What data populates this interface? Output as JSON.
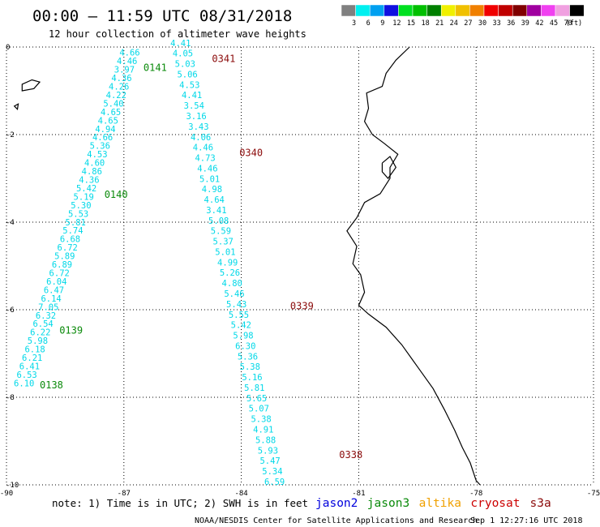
{
  "header": {
    "title": "00:00 – 11:59 UTC 08/31/2018",
    "subtitle": "12 hour collection of altimeter wave heights"
  },
  "legend": {
    "unit": "(ft)",
    "bins": [
      {
        "label": "3",
        "color": "#808080"
      },
      {
        "label": "6",
        "color": "#00f0f0"
      },
      {
        "label": "9",
        "color": "#00a0f0"
      },
      {
        "label": "12",
        "color": "#1010e0"
      },
      {
        "label": "15",
        "color": "#00e020"
      },
      {
        "label": "18",
        "color": "#00c000"
      },
      {
        "label": "21",
        "color": "#008000"
      },
      {
        "label": "24",
        "color": "#f0f000"
      },
      {
        "label": "27",
        "color": "#f0c000"
      },
      {
        "label": "30",
        "color": "#f08000"
      },
      {
        "label": "33",
        "color": "#f00000"
      },
      {
        "label": "36",
        "color": "#c00000"
      },
      {
        "label": "39",
        "color": "#800000"
      },
      {
        "label": "42",
        "color": "#a000a0"
      },
      {
        "label": "45",
        "color": "#f040f0"
      },
      {
        "label": "70",
        "color": "#f0a0e0"
      },
      {
        "label": "",
        "color": "#000000"
      }
    ]
  },
  "axes": {
    "lon_range": [
      -90,
      -75
    ],
    "lat_range": [
      -10,
      0
    ],
    "x_ticks": [
      {
        "value": -90,
        "label": "-90"
      },
      {
        "value": -87,
        "label": "-87"
      },
      {
        "value": -84,
        "label": "-84"
      },
      {
        "value": -81,
        "label": "-81"
      },
      {
        "value": -78,
        "label": "-78"
      },
      {
        "value": -75,
        "label": "-75"
      }
    ],
    "y_ticks": [
      {
        "value": 0,
        "label": "0"
      },
      {
        "value": -2,
        "label": "-2"
      },
      {
        "value": -4,
        "label": "-4"
      },
      {
        "value": -6,
        "label": "-6"
      },
      {
        "value": -8,
        "label": "-8"
      },
      {
        "value": -10,
        "label": "-10"
      }
    ],
    "grid": "dotted"
  },
  "tracks": [
    {
      "satellite": "jason3",
      "color": "#00d8e8",
      "start": [
        -86.85,
        -0.05
      ],
      "end": [
        -89.55,
        -7.6
      ],
      "values": [
        "4.66",
        "4.46",
        "3.97",
        "4.36",
        "4.26",
        "4.22",
        "5.40",
        "4.65",
        "4.65",
        "4.94",
        "4.66",
        "5.36",
        "4.53",
        "4.60",
        "4.86",
        "4.36",
        "5.42",
        "5.19",
        "5.30",
        "5.53",
        "5.81",
        "5.74",
        "6.68",
        "6.72",
        "5.89",
        "6.89",
        "6.72",
        "6.04",
        "6.47",
        "6.14",
        "7.05",
        "6.32",
        "6.54",
        "6.22",
        "5.98",
        "6.18",
        "6.21",
        "6.41",
        "6.53",
        "6.10"
      ]
    },
    {
      "satellite": "s3a",
      "color": "#00d8e8",
      "start": [
        -85.55,
        0.17
      ],
      "end": [
        -83.15,
        -9.85
      ],
      "values": [
        "4.41",
        "4.05",
        "5.03",
        "5.06",
        "4.53",
        "4.41",
        "3.54",
        "3.16",
        "3.43",
        "4.06",
        "4.46",
        "4.73",
        "4.46",
        "5.01",
        "4.98",
        "4.64",
        "3.41",
        "5.08",
        "5.59",
        "5.37",
        "5.01",
        "4.99",
        "5.26",
        "4.80",
        "5.46",
        "5.43",
        "5.55",
        "5.42",
        "5.98",
        "6.30",
        "5.36",
        "5.38",
        "5.16",
        "5.81",
        "5.65",
        "5.07",
        "5.38",
        "4.91",
        "5.88",
        "5.93",
        "5.47",
        "5.34",
        "6.59"
      ]
    }
  ],
  "pass_labels": [
    {
      "text": "0141",
      "lon": -86.5,
      "lat": -0.45,
      "satellite": "jason3",
      "color": "#0a8a0a"
    },
    {
      "text": "0140",
      "lon": -87.5,
      "lat": -3.35,
      "satellite": "jason3",
      "color": "#0a8a0a"
    },
    {
      "text": "0139",
      "lon": -88.65,
      "lat": -6.45,
      "satellite": "jason3",
      "color": "#0a8a0a"
    },
    {
      "text": "0138",
      "lon": -89.15,
      "lat": -7.7,
      "satellite": "jason3",
      "color": "#0a8a0a"
    },
    {
      "text": "0341",
      "lon": -84.75,
      "lat": -0.25,
      "satellite": "s3a",
      "color": "#8b0a0a"
    },
    {
      "text": "0340",
      "lon": -84.05,
      "lat": -2.4,
      "satellite": "s3a",
      "color": "#8b0a0a"
    },
    {
      "text": "0339",
      "lon": -82.75,
      "lat": -5.9,
      "satellite": "s3a",
      "color": "#8b0a0a"
    },
    {
      "text": "0338",
      "lon": -81.5,
      "lat": -9.3,
      "satellite": "s3a",
      "color": "#8b0a0a"
    }
  ],
  "coastline": {
    "color": "#000000",
    "mainland": [
      [
        -79.7,
        0
      ],
      [
        -80.05,
        -0.3
      ],
      [
        -80.3,
        -0.6
      ],
      [
        -80.4,
        -0.9
      ],
      [
        -80.8,
        -1.05
      ],
      [
        -80.75,
        -1.4
      ],
      [
        -80.85,
        -1.7
      ],
      [
        -80.65,
        -2.0
      ],
      [
        -80.35,
        -2.2
      ],
      [
        -80.0,
        -2.45
      ],
      [
        -80.2,
        -2.75
      ],
      [
        -80.2,
        -3.0
      ],
      [
        -80.45,
        -3.35
      ],
      [
        -80.85,
        -3.55
      ],
      [
        -81.05,
        -3.9
      ],
      [
        -81.3,
        -4.2
      ],
      [
        -81.05,
        -4.55
      ],
      [
        -81.15,
        -4.95
      ],
      [
        -80.95,
        -5.2
      ],
      [
        -80.85,
        -5.6
      ],
      [
        -81.0,
        -5.9
      ],
      [
        -80.75,
        -6.1
      ],
      [
        -80.3,
        -6.4
      ],
      [
        -79.9,
        -6.8
      ],
      [
        -79.5,
        -7.3
      ],
      [
        -79.1,
        -7.8
      ],
      [
        -78.8,
        -8.3
      ],
      [
        -78.55,
        -8.75
      ],
      [
        -78.35,
        -9.15
      ],
      [
        -78.15,
        -9.5
      ],
      [
        -78.0,
        -9.9
      ],
      [
        -77.9,
        -10
      ]
    ],
    "gulf_island": [
      [
        -80.4,
        -2.65
      ],
      [
        -80.2,
        -2.5
      ],
      [
        -80.05,
        -2.75
      ],
      [
        -80.25,
        -3.0
      ],
      [
        -80.4,
        -2.85
      ],
      [
        -80.4,
        -2.65
      ]
    ],
    "islands": [
      [
        [
          -89.6,
          -0.85
        ],
        [
          -89.35,
          -0.75
        ],
        [
          -89.15,
          -0.8
        ],
        [
          -89.3,
          -0.95
        ],
        [
          -89.6,
          -1.0
        ],
        [
          -89.6,
          -0.85
        ]
      ],
      [
        [
          -89.8,
          -1.35
        ],
        [
          -89.7,
          -1.3
        ],
        [
          -89.72,
          -1.42
        ],
        [
          -89.8,
          -1.35
        ]
      ]
    ]
  },
  "footer": {
    "note": "note: 1) Time is in UTC; 2) SWH is in feet",
    "credit": "NOAA/NESDIS Center for Satellite Applications and Research",
    "timestamp": "Sep  1 12:27:16 UTC 2018",
    "satellites": [
      {
        "name": "jason2",
        "color": "#0000dd"
      },
      {
        "name": "jason3",
        "color": "#0a8a0a"
      },
      {
        "name": "altika",
        "color": "#f0a000"
      },
      {
        "name": "cryosat",
        "color": "#cc0000"
      },
      {
        "name": "s3a",
        "color": "#8b0a0a"
      }
    ]
  }
}
